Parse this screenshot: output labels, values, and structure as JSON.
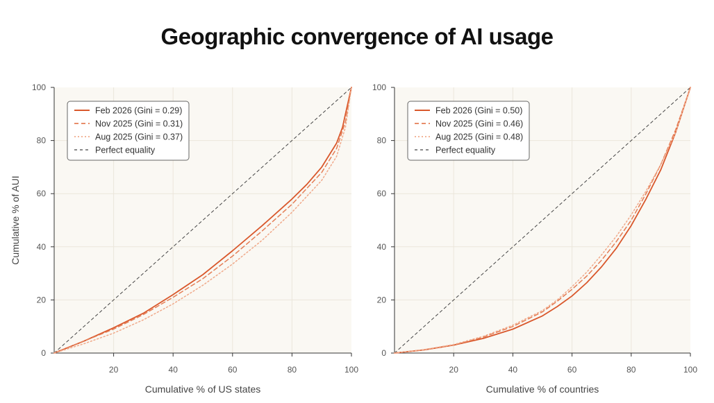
{
  "title": "Geographic convergence of AI usage",
  "colors": {
    "feb": "#d9572b",
    "nov": "#e47d55",
    "aug": "#f0a98a",
    "equality": "#444444",
    "plot_bg": "#faf8f3",
    "grid": "#ebe6db"
  },
  "chart_data": [
    {
      "type": "line",
      "xlabel": "Cumulative % of US states",
      "ylabel": "Cumulative % of AUI",
      "xlim": [
        0,
        100
      ],
      "ylim": [
        0,
        100
      ],
      "xticks": [
        20,
        40,
        60,
        80,
        100
      ],
      "yticks": [
        0,
        20,
        40,
        60,
        80,
        100
      ],
      "grid": true,
      "legend_position": "top-left",
      "series": [
        {
          "name": "Feb 2026 (Gini = 0.29)",
          "style": "solid",
          "color": "#d9572b",
          "x": [
            0,
            10,
            20,
            30,
            40,
            50,
            60,
            70,
            80,
            85,
            90,
            95,
            97,
            98,
            100
          ],
          "y": [
            0,
            4.5,
            9.5,
            15,
            22,
            29.5,
            38.5,
            48,
            58,
            63.5,
            70,
            79,
            85,
            90,
            100
          ]
        },
        {
          "name": "Nov 2025 (Gini = 0.31)",
          "style": "dashed",
          "color": "#e47d55",
          "x": [
            0,
            10,
            20,
            30,
            40,
            50,
            60,
            70,
            80,
            90,
            95,
            98,
            100
          ],
          "y": [
            0,
            4.5,
            9,
            14.5,
            21,
            28,
            36.5,
            46,
            56,
            68,
            77,
            87,
            100
          ]
        },
        {
          "name": "Aug 2025 (Gini = 0.37)",
          "style": "dotted",
          "color": "#f0a98a",
          "x": [
            0,
            10,
            20,
            30,
            40,
            50,
            60,
            70,
            80,
            90,
            95,
            98,
            100
          ],
          "y": [
            0,
            3.5,
            7.5,
            12.5,
            18.5,
            25.5,
            33.5,
            42.5,
            53,
            65,
            74,
            85,
            100
          ]
        },
        {
          "name": "Perfect equality",
          "style": "equality",
          "color": "#444444",
          "x": [
            0,
            100
          ],
          "y": [
            0,
            100
          ]
        }
      ]
    },
    {
      "type": "line",
      "xlabel": "Cumulative % of countries",
      "ylabel": "",
      "xlim": [
        0,
        100
      ],
      "ylim": [
        0,
        100
      ],
      "xticks": [
        20,
        40,
        60,
        80,
        100
      ],
      "yticks": [
        0,
        20,
        40,
        60,
        80,
        100
      ],
      "grid": true,
      "legend_position": "top-left",
      "series": [
        {
          "name": "Feb 2026 (Gini = 0.50)",
          "style": "solid",
          "color": "#d9572b",
          "x": [
            0,
            10,
            20,
            30,
            40,
            50,
            55,
            60,
            65,
            70,
            75,
            80,
            85,
            90,
            95,
            100
          ],
          "y": [
            0,
            1.2,
            3,
            5.5,
            9,
            14,
            17.5,
            21.5,
            26.5,
            32.5,
            39.5,
            48,
            58,
            69,
            83,
            100
          ]
        },
        {
          "name": "Nov 2025 (Gini = 0.46)",
          "style": "dashed",
          "color": "#e47d55",
          "x": [
            0,
            10,
            20,
            30,
            40,
            50,
            55,
            60,
            65,
            70,
            75,
            80,
            85,
            90,
            95,
            100
          ],
          "y": [
            0,
            1.2,
            3,
            6,
            10,
            15.5,
            19.5,
            24,
            29,
            35,
            42,
            50,
            60,
            71,
            84,
            100
          ]
        },
        {
          "name": "Aug 2025 (Gini = 0.48)",
          "style": "dotted",
          "color": "#f0a98a",
          "x": [
            0,
            10,
            20,
            30,
            40,
            50,
            55,
            60,
            65,
            70,
            75,
            80,
            85,
            90,
            95,
            100
          ],
          "y": [
            0,
            1.3,
            3.2,
            6.3,
            10.5,
            16,
            20,
            25,
            30.5,
            37,
            44,
            52,
            61,
            71,
            83,
            100
          ]
        },
        {
          "name": "Perfect equality",
          "style": "equality",
          "color": "#444444",
          "x": [
            0,
            100
          ],
          "y": [
            0,
            100
          ]
        }
      ]
    }
  ]
}
